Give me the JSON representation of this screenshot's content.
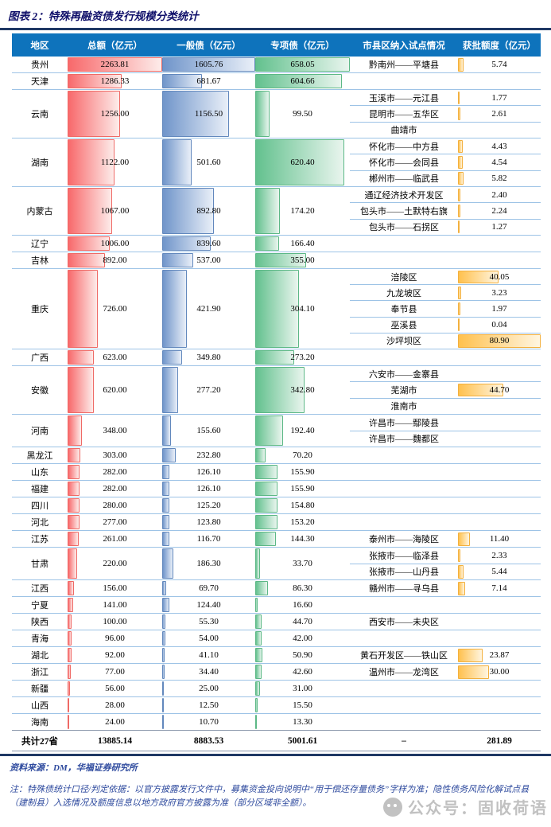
{
  "title": "图表 2：特殊再融资债发行规模分类统计",
  "watermark": {
    "text": "公众号：固收荷语",
    "icon": "wechat-icon"
  },
  "footer": {
    "source": "资料来源：DM，华福证券研究所",
    "note": "注：特殊债统计口径/判定依据：以官方披露发行文件中，募集资金投向说明中“用于偿还存量债务”字样为准；隐性债务风险化解试点县（建制县）入选情况及额度信息以地方政府官方披露为准（部分区域非全额）。"
  },
  "colors": {
    "header_bg": "#0E73BC",
    "divider": "#9DC3E6",
    "title_rule": "#1F3864",
    "total_bar": "#F8696B",
    "general_bar": "#638EC6",
    "special_bar": "#63C384",
    "quota_bar": "#FFB628",
    "title_text": "#10106A",
    "footer_text": "#2E4A9E"
  },
  "chart_data": {
    "type": "table",
    "title": "图表 2：特殊再融资债发行规模分类统计",
    "columns": [
      "地区",
      "总额（亿元）",
      "一般债（亿元）",
      "专项债（亿元）",
      "市县区纳入试点情况",
      "获批额度（亿元）"
    ],
    "bar_scale_max": {
      "total": 2263.81,
      "general": 1605.76,
      "special": 658.05,
      "quota": 80.9
    },
    "rows": [
      {
        "region": "贵州",
        "total": 2263.81,
        "general": 1605.76,
        "special": 658.05,
        "pilots": [
          {
            "name": "黔南州——平塘县",
            "quota": 5.74
          }
        ]
      },
      {
        "region": "天津",
        "total": 1286.33,
        "general": 681.67,
        "special": 604.66,
        "pilots": []
      },
      {
        "region": "云南",
        "total": 1256.0,
        "general": 1156.5,
        "special": 99.5,
        "pilots": [
          {
            "name": "玉溪市——元江县",
            "quota": 1.77
          },
          {
            "name": "昆明市——五华区",
            "quota": 2.61
          },
          {
            "name": "曲靖市",
            "quota": null
          }
        ]
      },
      {
        "region": "湖南",
        "total": 1122.0,
        "general": 501.6,
        "special": 620.4,
        "pilots": [
          {
            "name": "怀化市——中方县",
            "quota": 4.43
          },
          {
            "name": "怀化市——会同县",
            "quota": 4.54
          },
          {
            "name": "郴州市——临武县",
            "quota": 5.82
          }
        ]
      },
      {
        "region": "内蒙古",
        "total": 1067.0,
        "general": 892.8,
        "special": 174.2,
        "pilots": [
          {
            "name": "通辽经济技术开发区",
            "quota": 2.4
          },
          {
            "name": "包头市——土默特右旗",
            "quota": 2.24
          },
          {
            "name": "包头市——石拐区",
            "quota": 1.27
          }
        ]
      },
      {
        "region": "辽宁",
        "total": 1006.0,
        "general": 839.6,
        "special": 166.4,
        "pilots": []
      },
      {
        "region": "吉林",
        "total": 892.0,
        "general": 537.0,
        "special": 355.0,
        "pilots": []
      },
      {
        "region": "重庆",
        "total": 726.0,
        "general": 421.9,
        "special": 304.1,
        "pilots": [
          {
            "name": "涪陵区",
            "quota": 40.05
          },
          {
            "name": "九龙坡区",
            "quota": 3.23
          },
          {
            "name": "奉节县",
            "quota": 1.97
          },
          {
            "name": "巫溪县",
            "quota": 0.04
          },
          {
            "name": "沙坪坝区",
            "quota": 80.9
          }
        ]
      },
      {
        "region": "广西",
        "total": 623.0,
        "general": 349.8,
        "special": 273.2,
        "pilots": []
      },
      {
        "region": "安徽",
        "total": 620.0,
        "general": 277.2,
        "special": 342.8,
        "pilots": [
          {
            "name": "六安市——金寨县",
            "quota": null
          },
          {
            "name": "芜湖市",
            "quota": 44.7
          },
          {
            "name": "淮南市",
            "quota": null
          }
        ]
      },
      {
        "region": "河南",
        "total": 348.0,
        "general": 155.6,
        "special": 192.4,
        "pilots": [
          {
            "name": "许昌市——鄢陵县",
            "quota": null
          },
          {
            "name": "许昌市——魏都区",
            "quota": null
          }
        ]
      },
      {
        "region": "黑龙江",
        "total": 303.0,
        "general": 232.8,
        "special": 70.2,
        "pilots": []
      },
      {
        "region": "山东",
        "total": 282.0,
        "general": 126.1,
        "special": 155.9,
        "pilots": []
      },
      {
        "region": "福建",
        "total": 282.0,
        "general": 126.1,
        "special": 155.9,
        "pilots": []
      },
      {
        "region": "四川",
        "total": 280.0,
        "general": 125.2,
        "special": 154.8,
        "pilots": []
      },
      {
        "region": "河北",
        "total": 277.0,
        "general": 123.8,
        "special": 153.2,
        "pilots": []
      },
      {
        "region": "江苏",
        "total": 261.0,
        "general": 116.7,
        "special": 144.3,
        "pilots": [
          {
            "name": "泰州市——海陵区",
            "quota": 11.4
          }
        ]
      },
      {
        "region": "甘肃",
        "total": 220.0,
        "general": 186.3,
        "special": 33.7,
        "pilots": [
          {
            "name": "张掖市——临泽县",
            "quota": 2.33
          },
          {
            "name": "张掖市——山丹县",
            "quota": 5.44
          }
        ]
      },
      {
        "region": "江西",
        "total": 156.0,
        "general": 69.7,
        "special": 86.3,
        "pilots": [
          {
            "name": "赣州市——寻乌县",
            "quota": 7.14
          }
        ]
      },
      {
        "region": "宁夏",
        "total": 141.0,
        "general": 124.4,
        "special": 16.6,
        "pilots": []
      },
      {
        "region": "陕西",
        "total": 100.0,
        "general": 55.3,
        "special": 44.7,
        "pilots": [
          {
            "name": "西安市——未央区",
            "quota": null
          }
        ]
      },
      {
        "region": "青海",
        "total": 96.0,
        "general": 54.0,
        "special": 42.0,
        "pilots": []
      },
      {
        "region": "湖北",
        "total": 92.0,
        "general": 41.1,
        "special": 50.9,
        "pilots": [
          {
            "name": "黄石开发区——铁山区",
            "quota": 23.87
          }
        ]
      },
      {
        "region": "浙江",
        "total": 77.0,
        "general": 34.4,
        "special": 42.6,
        "pilots": [
          {
            "name": "温州市——龙湾区",
            "quota": 30.0
          }
        ]
      },
      {
        "region": "新疆",
        "total": 56.0,
        "general": 25.0,
        "special": 31.0,
        "pilots": []
      },
      {
        "region": "山西",
        "total": 28.0,
        "general": 12.5,
        "special": 15.5,
        "pilots": []
      },
      {
        "region": "海南",
        "total": 24.0,
        "general": 10.7,
        "special": 13.3,
        "pilots": []
      }
    ],
    "total_row": {
      "region": "共计27省",
      "total": "13885.14",
      "general": "8883.53",
      "special": "5001.61",
      "pilot": "–",
      "quota": "281.89"
    }
  }
}
